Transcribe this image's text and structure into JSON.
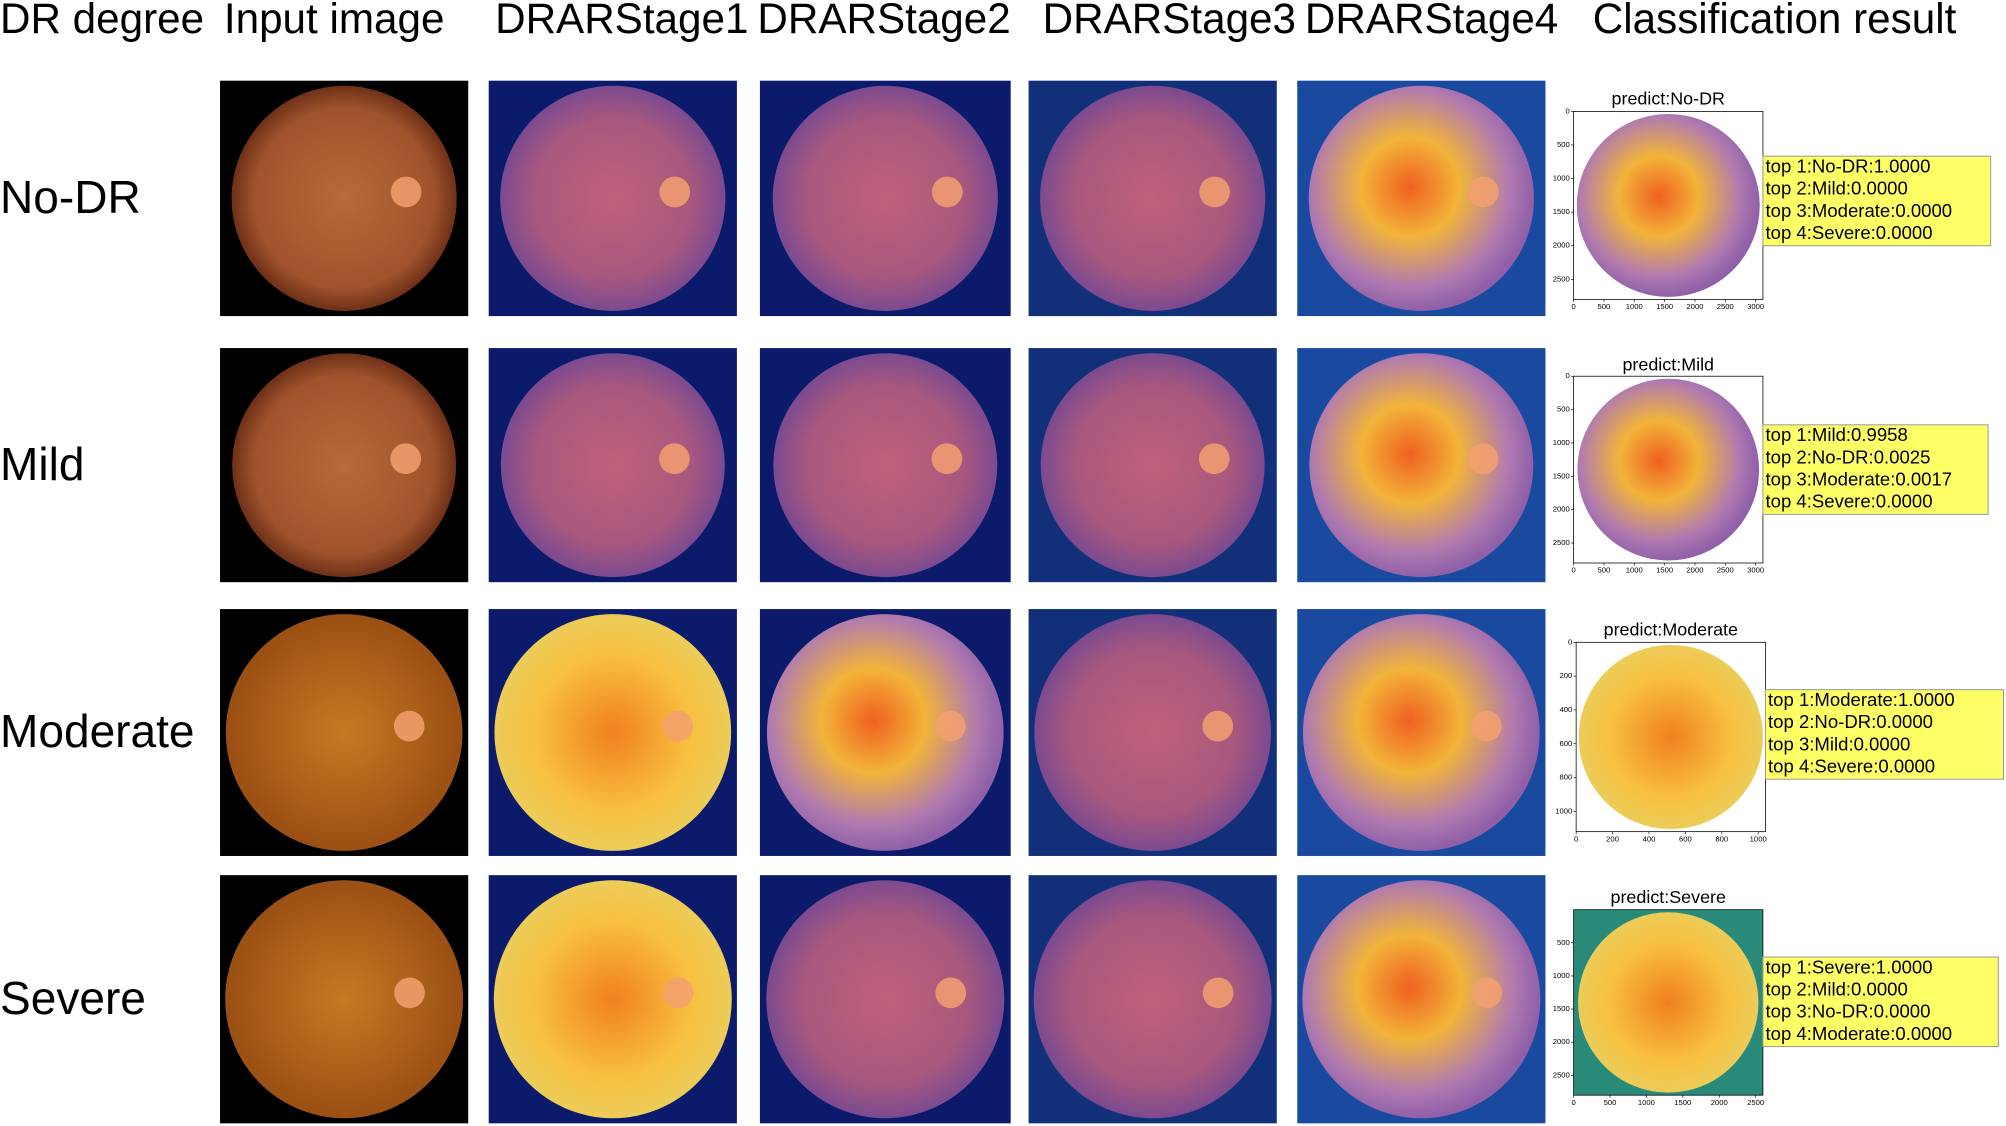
{
  "header": {
    "columns": [
      "DR degree",
      "Input image",
      "DRARStage1",
      "DRARStage2",
      "DRARStage3",
      "DRARStage4",
      "Classification result"
    ]
  },
  "rows": [
    {
      "label": "No-DR",
      "predict": "predict:No-DR",
      "yticks": [
        0,
        500,
        1000,
        1500,
        2000,
        2500
      ],
      "xticks": [
        0,
        500,
        1000,
        1500,
        2000,
        2500,
        3000
      ],
      "results": [
        "top 1:No-DR:1.0000",
        "top 2:Mild:0.0000",
        "top 3:Moderate:0.0000",
        "top 4:Severe:0.0000"
      ]
    },
    {
      "label": "Mild",
      "predict": "predict:Mild",
      "yticks": [
        0,
        500,
        1000,
        1500,
        2000,
        2500
      ],
      "xticks": [
        0,
        500,
        1000,
        1500,
        2000,
        2500,
        3000
      ],
      "results": [
        "top 1:Mild:0.9958",
        "top 2:No-DR:0.0025",
        "top 3:Moderate:0.0017",
        "top 4:Severe:0.0000"
      ]
    },
    {
      "label": "Moderate",
      "predict": "predict:Moderate",
      "yticks": [
        0,
        200,
        400,
        600,
        800,
        1000
      ],
      "xticks": [
        0,
        200,
        400,
        600,
        800,
        1000
      ],
      "results": [
        "top 1:Moderate:1.0000",
        "top 2:No-DR:0.0000",
        "top 3:Mild:0.0000",
        "top 4:Severe:0.0000"
      ]
    },
    {
      "label": "Severe",
      "predict": "predict:Severe",
      "yticks": [
        500,
        1000,
        1500,
        2000,
        2500
      ],
      "xticks": [
        0,
        500,
        1000,
        1500,
        2000,
        2500
      ],
      "results": [
        "top 1:Severe:1.0000",
        "top 2:Mild:0.0000",
        "top 3:No-DR:0.0000",
        "top 4:Moderate:0.0000"
      ]
    }
  ]
}
